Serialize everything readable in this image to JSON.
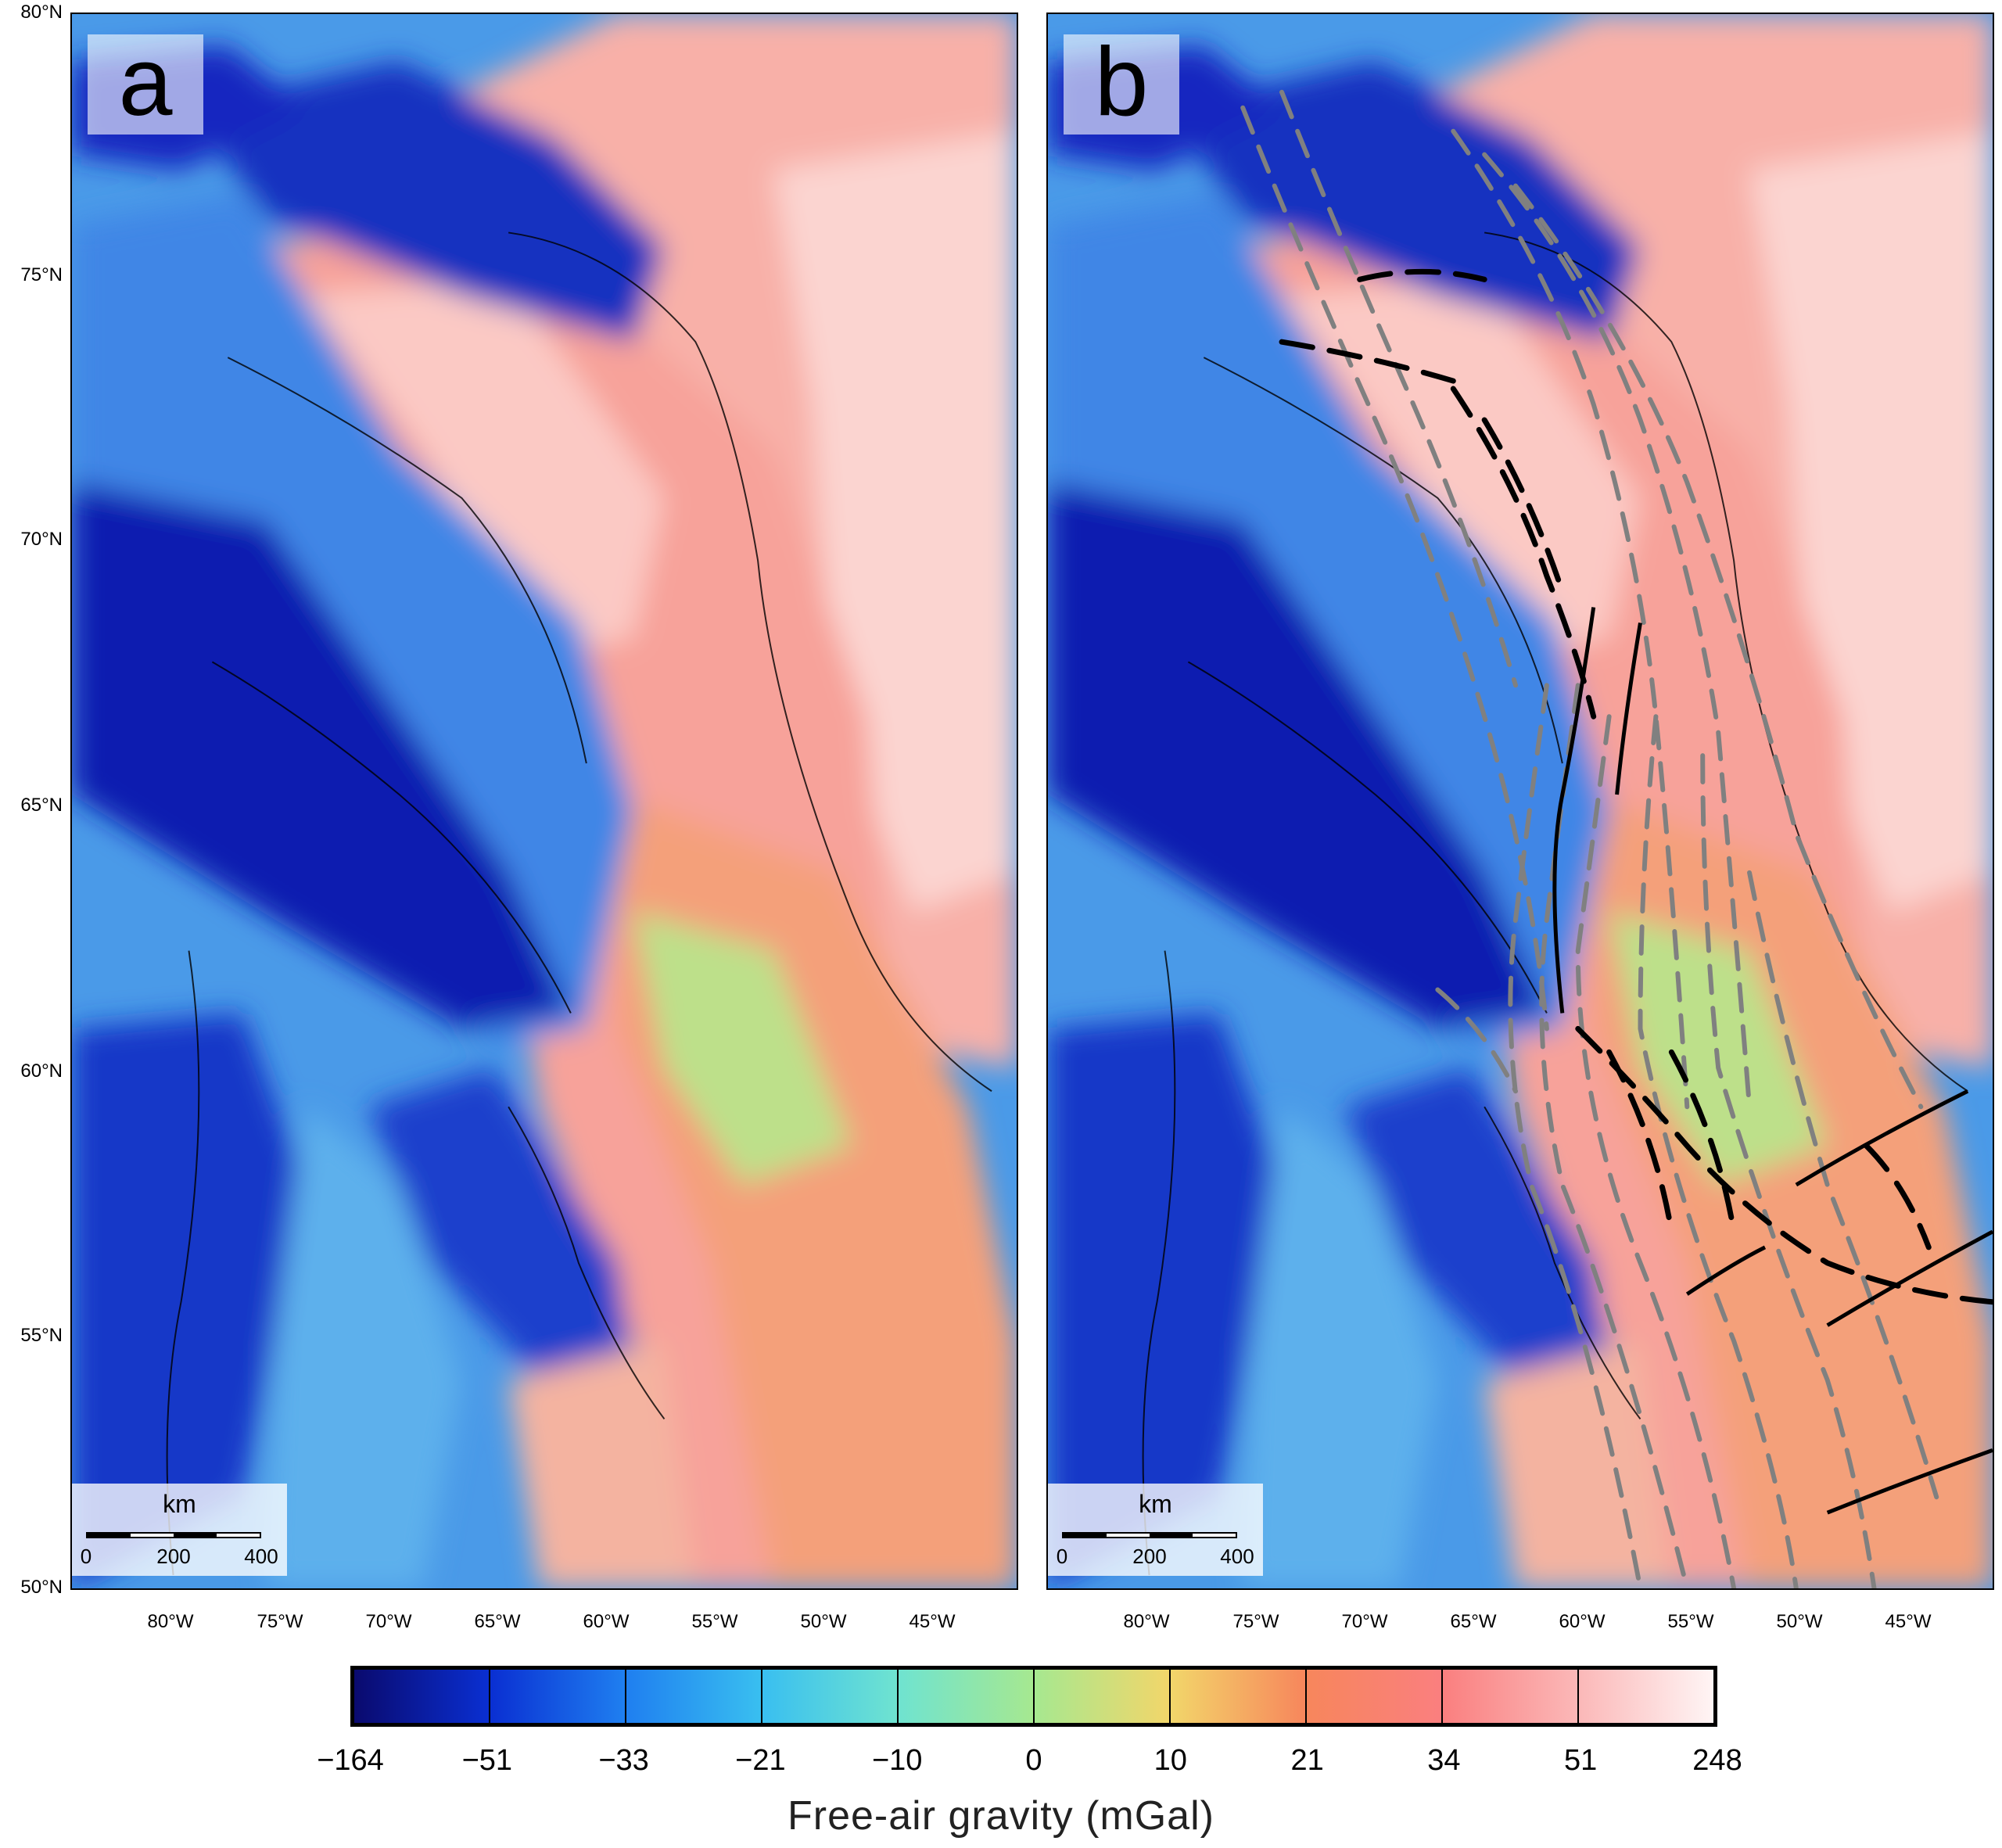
{
  "panels": [
    {
      "letter": "a",
      "faults": false
    },
    {
      "letter": "b",
      "faults": true
    }
  ],
  "lat_labels": [
    "80°N",
    "75°N",
    "70°N",
    "65°N",
    "60°N",
    "55°N",
    "50°N"
  ],
  "lon_labels": [
    "80°W",
    "75°W",
    "70°W",
    "65°W",
    "60°W",
    "55°W",
    "50°W",
    "45°W"
  ],
  "scale_bar": {
    "unit": "km",
    "ticks": [
      "0",
      "200",
      "400"
    ]
  },
  "colorbar": {
    "title": "Free-air gravity (mGal)",
    "labels": [
      "−164",
      "−51",
      "−33",
      "−21",
      "−10",
      "0",
      "10",
      "21",
      "34",
      "51",
      "248"
    ],
    "colors": [
      "#0a0a6e",
      "#0a2fd2",
      "#1f7ff0",
      "#39bff0",
      "#6fe3d0",
      "#a6e890",
      "#f2d66a",
      "#f7865c",
      "#fa7f7f",
      "#fbb8b8",
      "#fff5f5"
    ]
  },
  "map_colors": {
    "deep_low": "#0a1fb4",
    "low": "#3f92e8",
    "mid": "#a6e890",
    "high": "#f7865c",
    "very_high": "#f9c2c2",
    "fault_black": "#000000",
    "fault_gray": "#808080"
  }
}
